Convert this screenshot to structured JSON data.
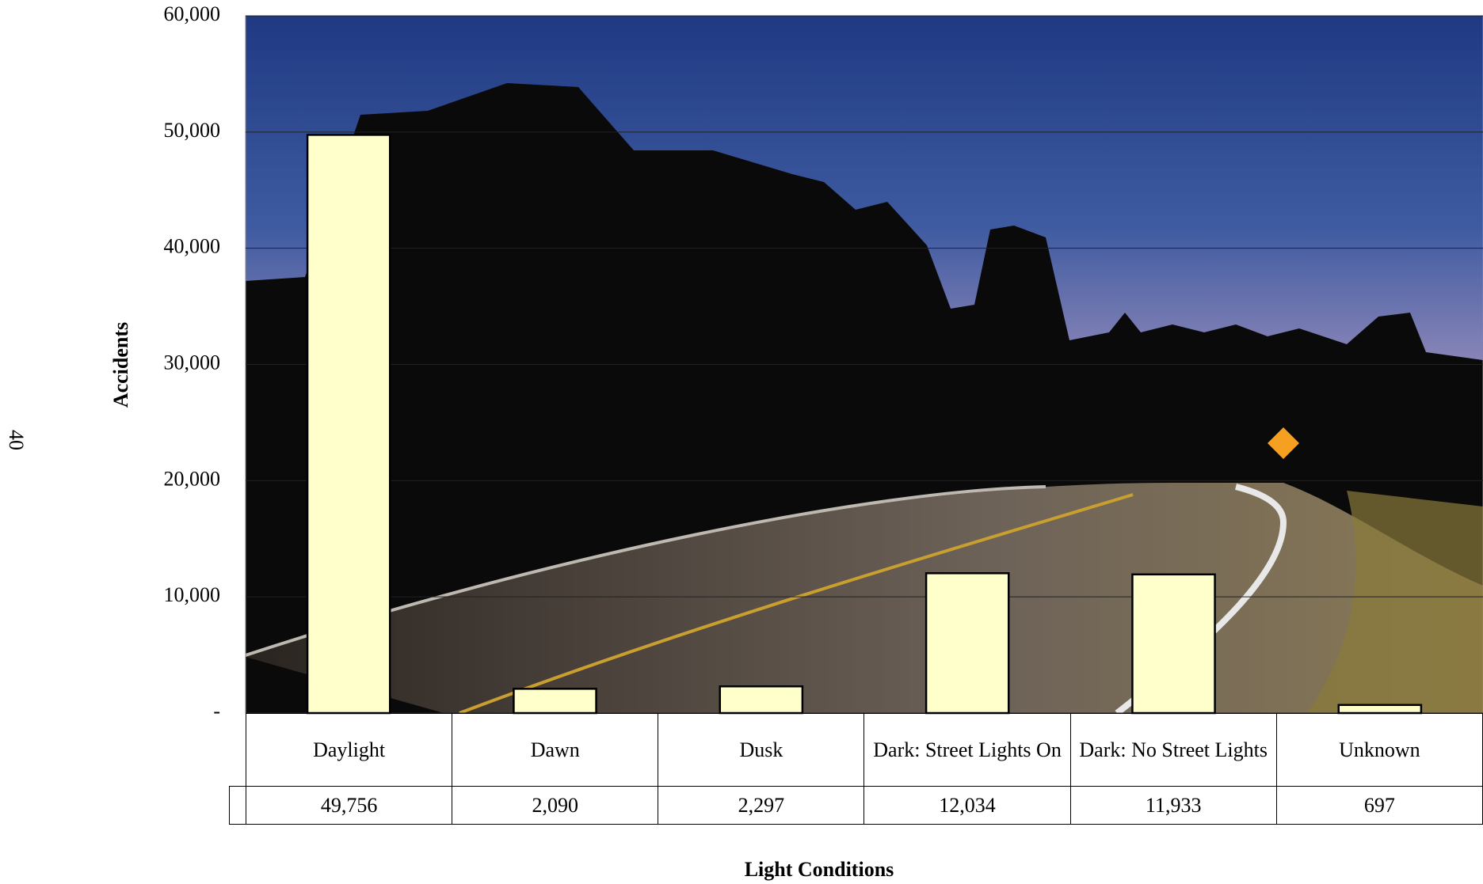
{
  "page_number": "40",
  "chart_data": {
    "type": "bar",
    "y_label": "Accidents",
    "x_label": "Light Conditions",
    "categories": [
      "Daylight",
      "Dawn",
      "Dusk",
      "Dark: Street Lights On",
      "Dark: No Street Lights",
      "Unknown"
    ],
    "values": [
      49756,
      2090,
      2297,
      12034,
      11933,
      697
    ],
    "value_labels": [
      "49,756",
      "2,090",
      "2,297",
      "12,034",
      "11,933",
      "697"
    ],
    "color": "#ffffcc",
    "ylim": [
      0,
      60000
    ],
    "yticks": [
      {
        "value": 0,
        "label": "-"
      },
      {
        "value": 10000,
        "label": "10,000"
      },
      {
        "value": 20000,
        "label": "20,000"
      },
      {
        "value": 30000,
        "label": "30,000"
      },
      {
        "value": 40000,
        "label": "40,000"
      },
      {
        "value": 50000,
        "label": "50,000"
      },
      {
        "value": 60000,
        "label": "60,000"
      }
    ],
    "grid": true
  }
}
